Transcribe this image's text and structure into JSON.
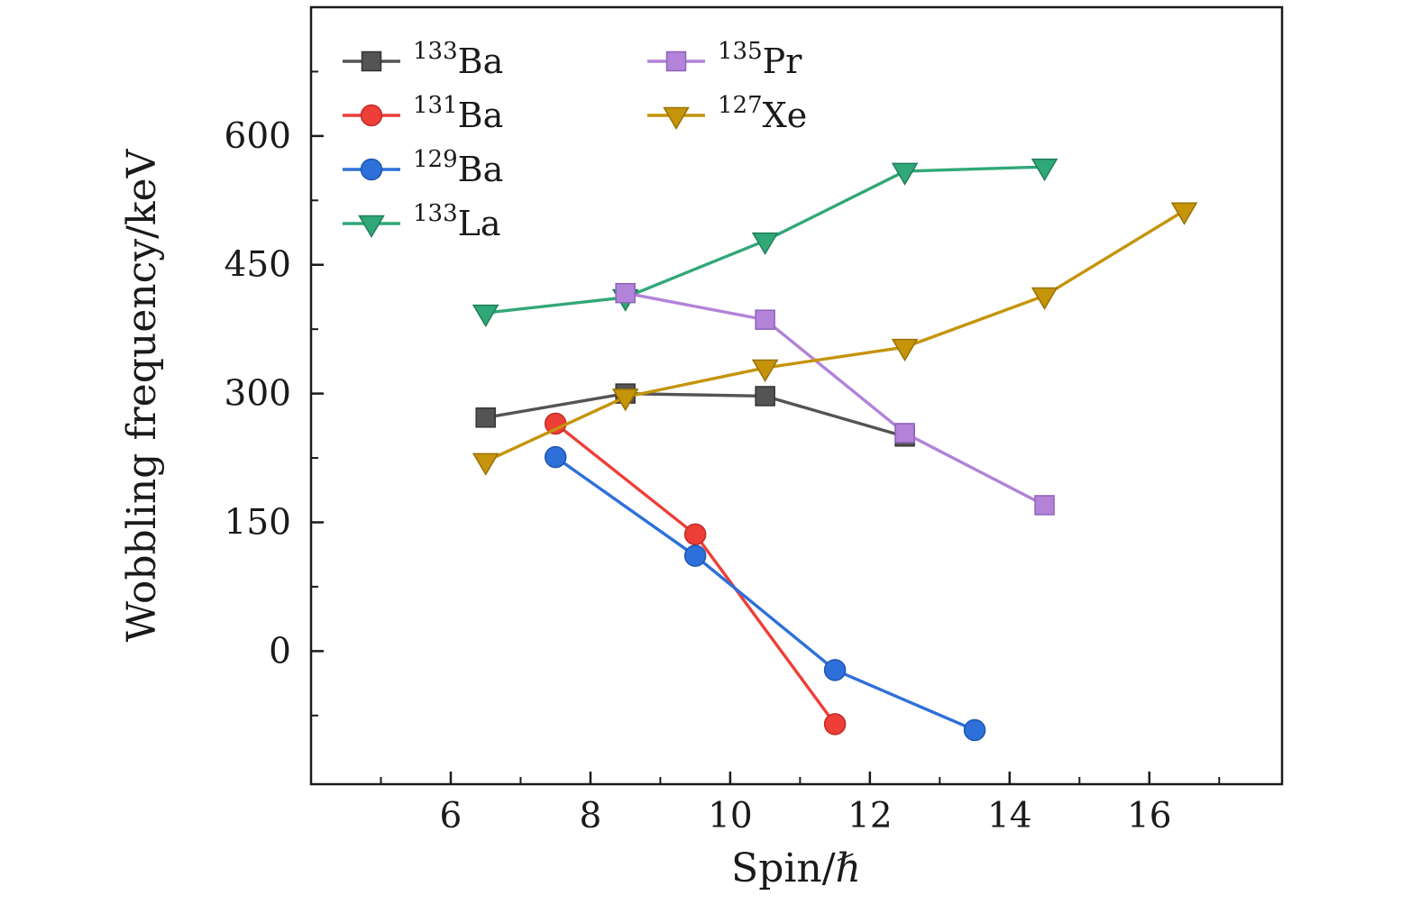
{
  "chart_data": {
    "type": "line",
    "title": "",
    "xlabel": "Spin/ℏ",
    "ylabel": "Wobbling frequency/keV",
    "xlim": [
      4.0,
      17.9
    ],
    "ylim": [
      -155,
      750
    ],
    "x_ticks": [
      6,
      8,
      10,
      12,
      14,
      16
    ],
    "y_ticks": [
      0,
      150,
      300,
      450,
      600
    ],
    "x_minor_ticks": [
      5,
      7,
      9,
      11,
      13,
      15,
      17
    ],
    "y_minor_ticks": [
      -75,
      75,
      225,
      375,
      525,
      675
    ],
    "grid": false,
    "legend_position": "top-left",
    "frame_color": "#1a1a1a",
    "series": [
      {
        "name": "133Ba",
        "label_mass": "133",
        "label_element": "Ba",
        "color": "#545454",
        "edge": "#333333",
        "marker": "square",
        "x": [
          6.5,
          8.5,
          10.5,
          12.5
        ],
        "y": [
          272,
          300,
          297,
          250
        ]
      },
      {
        "name": "131Ba",
        "label_mass": "131",
        "label_element": "Ba",
        "color": "#ee3e38",
        "edge": "#c12b26",
        "marker": "circle",
        "x": [
          7.5,
          9.5,
          11.5
        ],
        "y": [
          265,
          136,
          -85
        ]
      },
      {
        "name": "129Ba",
        "label_mass": "129",
        "label_element": "Ba",
        "color": "#2e70d9",
        "edge": "#1d55ae",
        "marker": "circle",
        "x": [
          7.5,
          9.5,
          11.5,
          13.5
        ],
        "y": [
          226,
          111,
          -22,
          -92
        ]
      },
      {
        "name": "133La",
        "label_mass": "133",
        "label_element": "La",
        "color": "#30a877",
        "edge": "#1f7f58",
        "marker": "triangle-down",
        "x": [
          6.5,
          8.5,
          10.5,
          12.5,
          14.5
        ],
        "y": [
          394,
          412,
          478,
          559,
          564
        ]
      },
      {
        "name": "135Pr",
        "label_mass": "135",
        "label_element": "Pr",
        "color": "#b283d8",
        "edge": "#8f62b8",
        "marker": "square",
        "x": [
          8.5,
          10.5,
          12.5,
          14.5
        ],
        "y": [
          417,
          386,
          254,
          170
        ]
      },
      {
        "name": "127Xe",
        "label_mass": "127",
        "label_element": "Xe",
        "color": "#c59408",
        "edge": "#977206",
        "marker": "triangle-down",
        "x": [
          6.5,
          8.5,
          10.5,
          12.5,
          14.5,
          16.5
        ],
        "y": [
          221,
          296,
          330,
          354,
          414,
          513
        ]
      }
    ],
    "legend": {
      "columns": [
        [
          "133Ba",
          "131Ba",
          "129Ba",
          "133La"
        ],
        [
          "135Pr",
          "127Xe"
        ]
      ]
    }
  }
}
